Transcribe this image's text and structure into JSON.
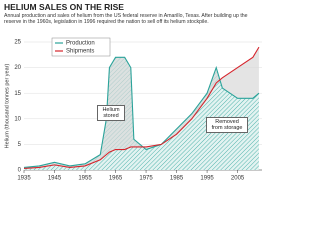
{
  "chart_data": {
    "type": "line",
    "title": "HELIUM SALES ON THE RISE",
    "subtitle": "Annual production and sales of helium from the US federal reserve in Amarillo, Texas. After building up the reserve in the 1960s, legislation in 1996 required the nation to sell off its helium stockpile.",
    "y_label": "Helium (thousand tonnes per year)",
    "annotations": [
      "Helium stored",
      "Removed from storage"
    ],
    "x": [
      1935,
      1940,
      1945,
      1950,
      1955,
      1960,
      1962,
      1963,
      1965,
      1968,
      1970,
      1971,
      1975,
      1980,
      1985,
      1990,
      1995,
      1998,
      2000,
      2005,
      2010,
      2012
    ],
    "series": [
      {
        "name": "Production",
        "color": "#2aa39a",
        "values": [
          0.5,
          0.8,
          1.5,
          0.8,
          1.2,
          3,
          10,
          20,
          22,
          22,
          20,
          6,
          4,
          5,
          8,
          11,
          15,
          20,
          16,
          14,
          14,
          15
        ]
      },
      {
        "name": "Shipments",
        "color": "#d6242c",
        "values": [
          0.3,
          0.5,
          1,
          0.5,
          0.8,
          2,
          3,
          3.5,
          4,
          4,
          4.5,
          4.5,
          4.5,
          5,
          7,
          10,
          14,
          17,
          18,
          20,
          22,
          24
        ]
      }
    ],
    "xlim": [
      1935,
      2013
    ],
    "ylim": [
      0,
      25
    ],
    "xticks": [
      1935,
      1945,
      1955,
      1965,
      1975,
      1985,
      1995,
      2005
    ],
    "yticks": [
      0,
      5,
      10,
      15,
      20,
      25
    ],
    "grid": true
  }
}
